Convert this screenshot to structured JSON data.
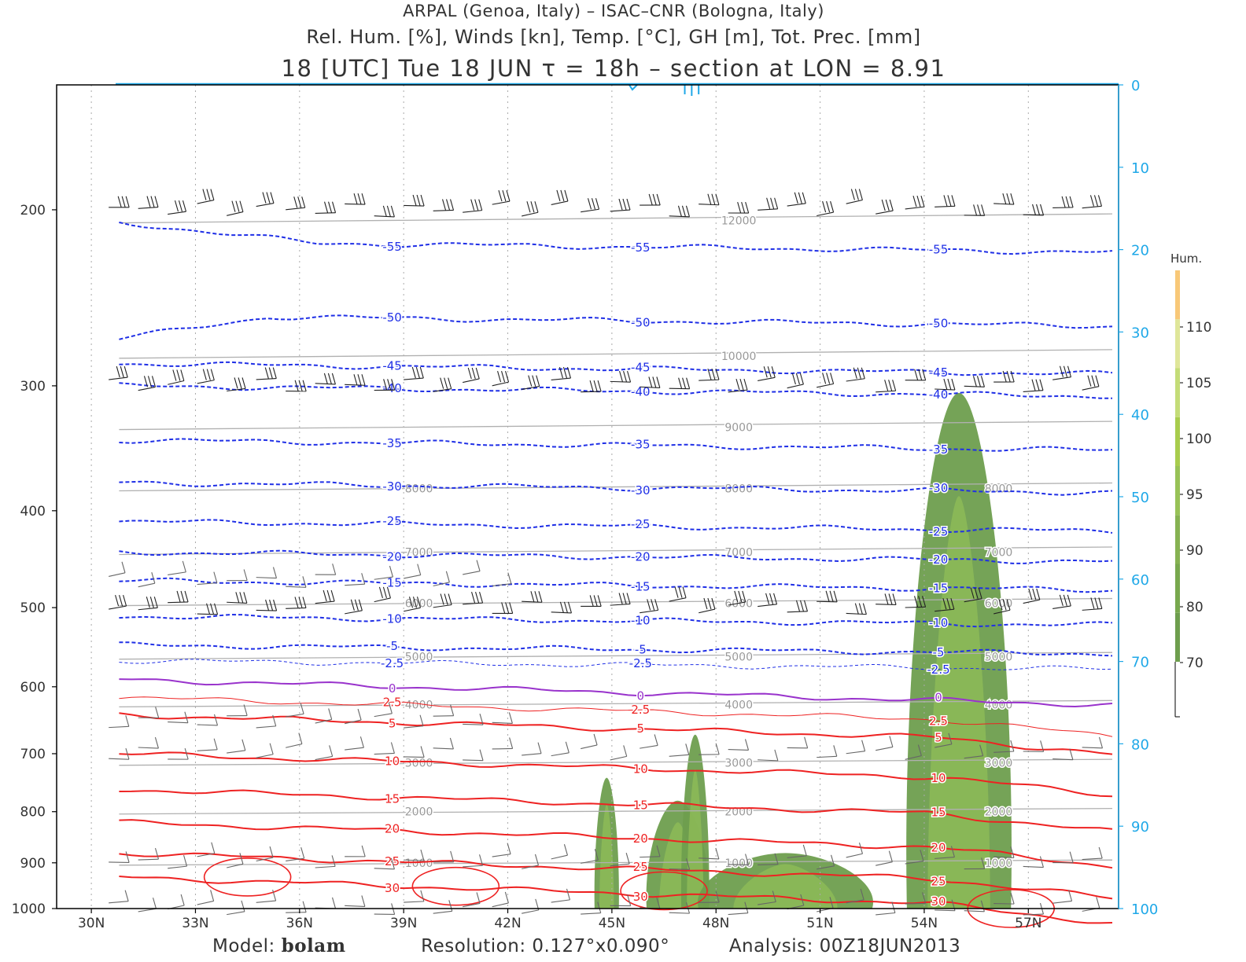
{
  "header": {
    "line1": "ARPAL (Genoa, Italy)  –  ISAC–CNR (Bologna, Italy)",
    "line2": "Rel. Hum. [%], Winds [kn], Temp. [°C], GH [m], Tot. Prec. [mm]",
    "line3": "18 [UTC] Tue 18 JUN  τ = 18h – section at LON = 8.91"
  },
  "footer": {
    "model_label": "Model:",
    "model_name": "bolam",
    "resolution": "Resolution: 0.127°x0.090°",
    "analysis": "Analysis: 00Z18JUN2013"
  },
  "colors": {
    "temp_negative": "#1f2fe6",
    "temp_positive": "#ee2222",
    "freezing": "#9933cc",
    "geopotential": "#b0b0b0",
    "precip_axis": "#1fa8e8",
    "humidity_dark": "#6e9e4e",
    "humidity_light": "#8fbb57"
  },
  "chart_data": {
    "type": "cross-section",
    "x_axis": {
      "ticks": [
        "30N",
        "33N",
        "36N",
        "39N",
        "42N",
        "45N",
        "48N",
        "51N",
        "54N",
        "57N"
      ],
      "range_deg_lat": [
        29.0,
        59.6
      ]
    },
    "y_axis_left": {
      "label": "",
      "ticks": [
        "200",
        "300",
        "400",
        "500",
        "600",
        "700",
        "800",
        "900",
        "1000"
      ],
      "range_hpa": [
        150,
        1000
      ],
      "scale": "log-pressure"
    },
    "y_axis_right": {
      "ticks": [
        "0",
        "10",
        "20",
        "30",
        "40",
        "50",
        "60",
        "70",
        "80",
        "90",
        "100"
      ],
      "range_mm": [
        0,
        100
      ]
    },
    "colorbar": {
      "title": "Hum.",
      "ticks": [
        "70",
        "80",
        "90",
        "95",
        "100",
        "105",
        "110"
      ]
    },
    "temperature_isotherms": [
      {
        "level": -55,
        "label": "-55",
        "pressure_hpa": 215
      },
      {
        "level": -50,
        "label": "-50",
        "pressure_hpa": 255
      },
      {
        "level": -45,
        "label": "-45",
        "pressure_hpa": 285
      },
      {
        "level": -40,
        "label": "-40",
        "pressure_hpa": 300
      },
      {
        "level": -35,
        "label": "-35",
        "pressure_hpa": 340
      },
      {
        "level": -30,
        "label": "-30",
        "pressure_hpa": 375
      },
      {
        "level": -25,
        "label": "-25",
        "pressure_hpa": 410
      },
      {
        "level": -20,
        "label": "-20",
        "pressure_hpa": 440
      },
      {
        "level": -15,
        "label": "-15",
        "pressure_hpa": 470
      },
      {
        "level": -10,
        "label": "-10",
        "pressure_hpa": 510
      },
      {
        "level": -5,
        "label": "-5",
        "pressure_hpa": 545
      },
      {
        "level": -2.5,
        "label": "-2.5",
        "pressure_hpa": 565
      },
      {
        "level": 0,
        "label": "0",
        "pressure_hpa": 590
      },
      {
        "level": 2.5,
        "label": "2.5",
        "pressure_hpa": 615
      },
      {
        "level": 5,
        "label": "5",
        "pressure_hpa": 640
      },
      {
        "level": 10,
        "label": "10",
        "pressure_hpa": 700
      },
      {
        "level": 15,
        "label": "15",
        "pressure_hpa": 760
      },
      {
        "level": 20,
        "label": "20",
        "pressure_hpa": 820
      },
      {
        "level": 25,
        "label": "25",
        "pressure_hpa": 880
      },
      {
        "level": 30,
        "label": "30",
        "pressure_hpa": 930
      }
    ],
    "geopotential_heights": [
      {
        "label": "12000",
        "pressure_hpa": 205
      },
      {
        "label": "10000",
        "pressure_hpa": 280
      },
      {
        "label": "9000",
        "pressure_hpa": 330
      },
      {
        "label": "8000",
        "pressure_hpa": 380
      },
      {
        "label": "7000",
        "pressure_hpa": 440
      },
      {
        "label": "6000",
        "pressure_hpa": 495
      },
      {
        "label": "5000",
        "pressure_hpa": 560
      },
      {
        "label": "4000",
        "pressure_hpa": 625
      },
      {
        "label": "3000",
        "pressure_hpa": 715
      },
      {
        "label": "2000",
        "pressure_hpa": 800
      },
      {
        "label": "1000",
        "pressure_hpa": 900
      }
    ],
    "humidity_regions": [
      {
        "lat_range": [
          53.5,
          56.5
        ],
        "pressure_range_hpa": [
          305,
          1000
        ]
      },
      {
        "lat_range": [
          46.0,
          47.8
        ],
        "pressure_range_hpa": [
          780,
          1000
        ]
      },
      {
        "lat_range": [
          47.0,
          47.8
        ],
        "pressure_range_hpa": [
          670,
          1000
        ]
      },
      {
        "lat_range": [
          44.5,
          45.2
        ],
        "pressure_range_hpa": [
          740,
          1000
        ]
      },
      {
        "lat_range": [
          47.5,
          52.5
        ],
        "pressure_range_hpa": [
          880,
          1000
        ]
      }
    ],
    "wind_barb_levels_hpa": [
      200,
      300,
      470,
      500,
      650,
      700,
      900,
      1000
    ]
  }
}
